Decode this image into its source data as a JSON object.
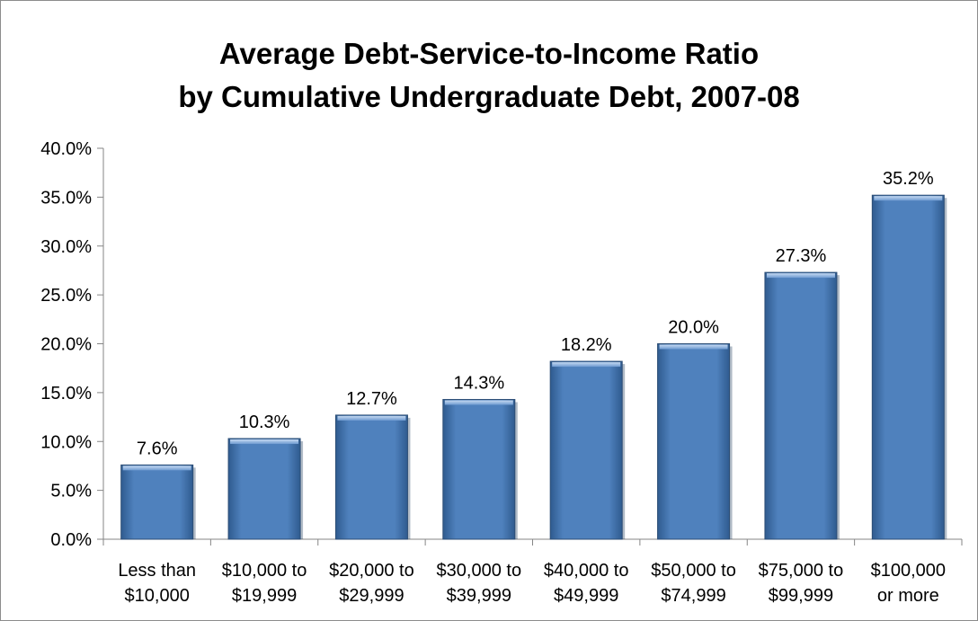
{
  "chart_data": {
    "type": "bar",
    "title_line1": "Average Debt-Service-to-Income Ratio",
    "title_line2": "by Cumulative Undergraduate Debt, 2007-08",
    "categories": [
      [
        "Less than",
        "$10,000"
      ],
      [
        "$10,000 to",
        "$19,999"
      ],
      [
        "$20,000 to",
        "$29,999"
      ],
      [
        "$30,000 to",
        "$39,999"
      ],
      [
        "$40,000 to",
        "$49,999"
      ],
      [
        "$50,000 to",
        "$74,999"
      ],
      [
        "$75,000 to",
        "$99,999"
      ],
      [
        "$100,000",
        "or more"
      ]
    ],
    "values": [
      7.6,
      10.3,
      12.7,
      14.3,
      18.2,
      20.0,
      27.3,
      35.2
    ],
    "data_labels": [
      "7.6%",
      "10.3%",
      "12.7%",
      "14.3%",
      "18.2%",
      "20.0%",
      "27.3%",
      "35.2%"
    ],
    "y_ticks": [
      "0.0%",
      "5.0%",
      "10.0%",
      "15.0%",
      "20.0%",
      "25.0%",
      "30.0%",
      "35.0%",
      "40.0%"
    ],
    "ylim": [
      0,
      40
    ],
    "grid": false,
    "legend": "none",
    "bar_color": "#4f81bd"
  }
}
